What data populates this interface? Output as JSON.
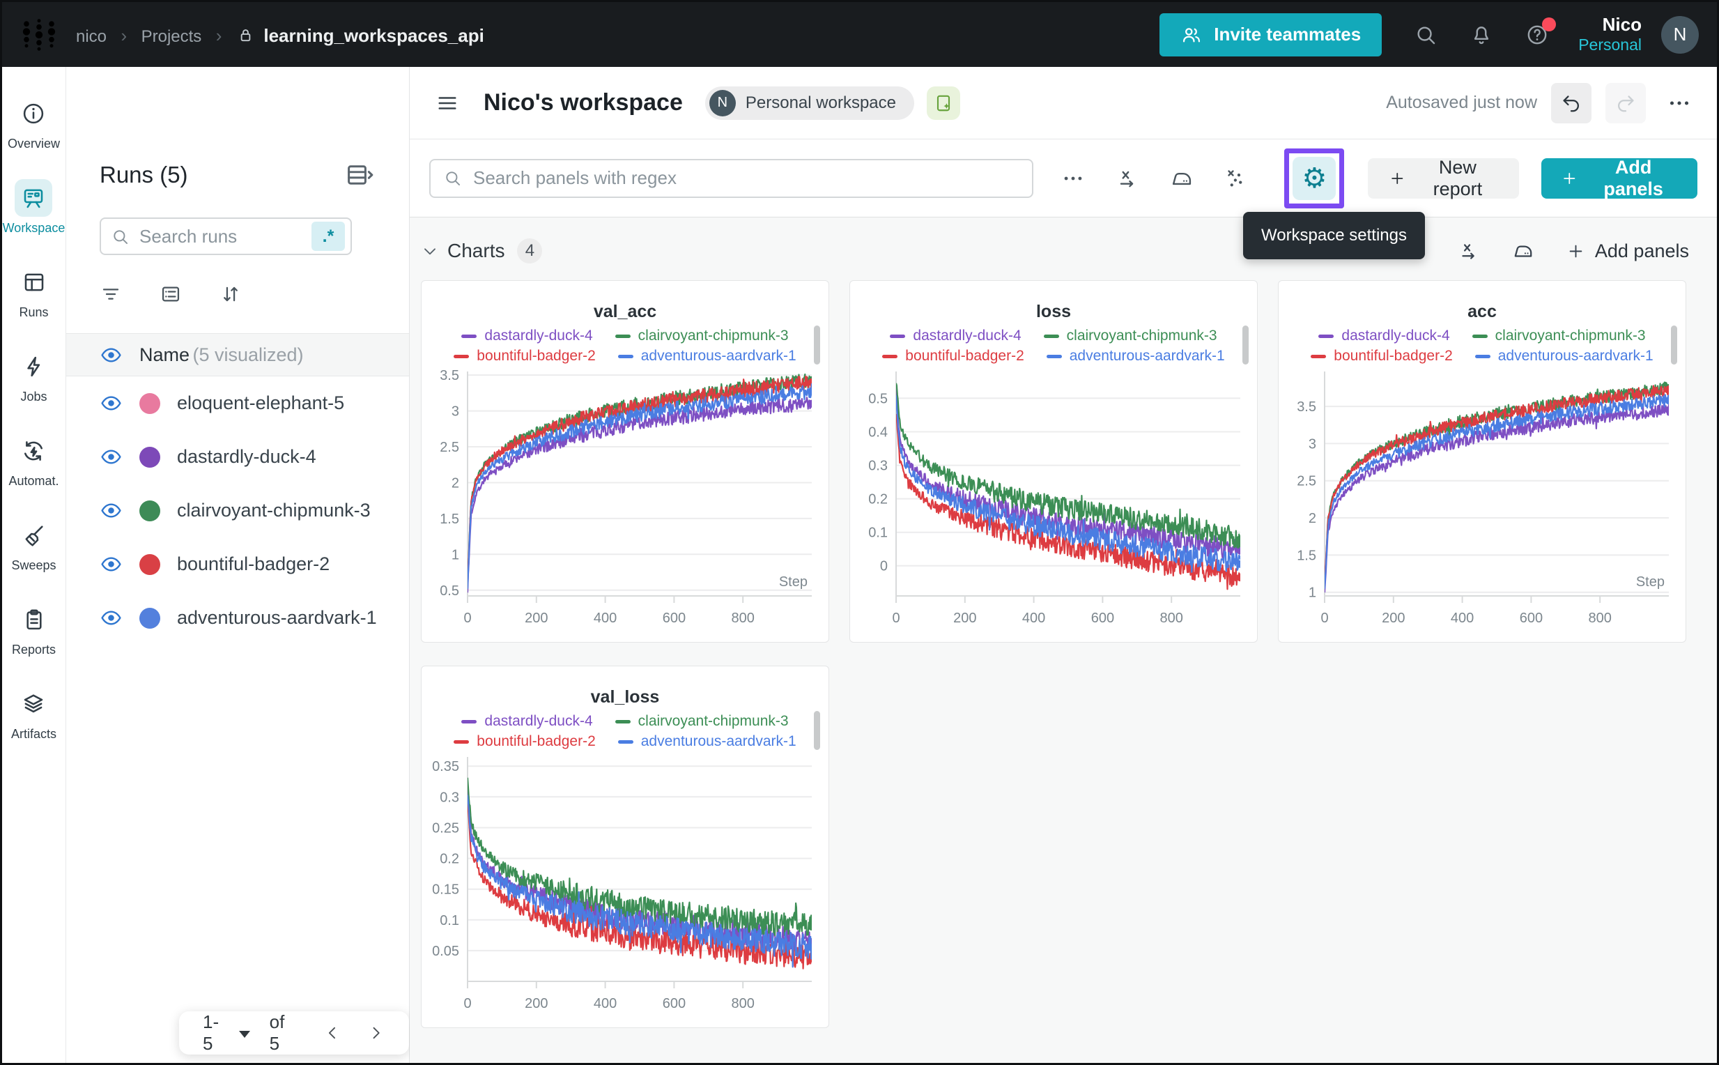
{
  "topbar": {
    "breadcrumb": {
      "items": [
        "nico",
        "Projects"
      ],
      "current": "learning_workspaces_api",
      "separator": "›"
    },
    "invite_label": "Invite teammates",
    "user_name": "Nico",
    "user_scope": "Personal",
    "avatar_initial": "N"
  },
  "rail": {
    "items": [
      {
        "label": "Overview",
        "icon": "overview-info-icon",
        "key": "info",
        "active": false
      },
      {
        "label": "Workspace",
        "icon": "workspace-board-icon",
        "key": "board",
        "active": true
      },
      {
        "label": "Runs",
        "icon": "runs-table-icon",
        "key": "table",
        "active": false
      },
      {
        "label": "Jobs",
        "icon": "jobs-bolt-icon",
        "key": "bolt",
        "active": false
      },
      {
        "label": "Automat.",
        "icon": "automations-icon",
        "key": "auto",
        "active": false
      },
      {
        "label": "Sweeps",
        "icon": "sweeps-broom-icon",
        "key": "broom",
        "active": false
      },
      {
        "label": "Reports",
        "icon": "reports-clipboard-icon",
        "key": "clipboard",
        "active": false
      },
      {
        "label": "Artifacts",
        "icon": "artifacts-layers-icon",
        "key": "layers",
        "active": false
      }
    ]
  },
  "runs_panel": {
    "title": "Runs (5)",
    "search_placeholder": "Search runs",
    "regex_badge": ".*",
    "header_name": "Name",
    "header_suffix": "(5 visualized)",
    "runs": [
      {
        "name": "eloquent-elephant-5",
        "color": "#e87a9f"
      },
      {
        "name": "dastardly-duck-4",
        "color": "#7d49b8"
      },
      {
        "name": "clairvoyant-chipmunk-3",
        "color": "#3d8b57"
      },
      {
        "name": "bountiful-badger-2",
        "color": "#d94045"
      },
      {
        "name": "adventurous-aardvark-1",
        "color": "#5380dd"
      }
    ],
    "pagination": {
      "range": "1-5",
      "total": "of 5"
    }
  },
  "workspace_header": {
    "title": "Nico's workspace",
    "badge_initial": "N",
    "badge_label": "Personal workspace",
    "autosave": "Autosaved just now"
  },
  "toolbar": {
    "search_placeholder": "Search panels with regex",
    "new_report": "New report",
    "add_panels": "Add panels",
    "tooltip": "Workspace settings"
  },
  "charts_section": {
    "title": "Charts",
    "count": "4",
    "add_panels": "Add panels"
  },
  "glyphs": {
    "gear": "⚙",
    "caret_down": ""
  },
  "colors": {
    "accent_teal": "#13a9ba",
    "highlight_purple": "#7c4bf2",
    "series_purple": "#7e4fc3",
    "series_green": "#3c8e55",
    "series_red": "#dd3c41",
    "series_blue": "#4a7de2"
  },
  "chart_data": [
    {
      "type": "line",
      "title": "val_acc",
      "xlabel": "Step",
      "x_range": [
        0,
        1000
      ],
      "x_ticks": [
        0,
        200,
        400,
        600,
        800
      ],
      "y_range": [
        0.42,
        3.55
      ],
      "y_ticks": [
        0.5,
        1,
        1.5,
        2,
        2.5,
        3,
        3.5
      ],
      "x_key": [
        0,
        10,
        25,
        50,
        100,
        150,
        200,
        300,
        400,
        500,
        600,
        700,
        800,
        900,
        1000
      ],
      "noise": 0.1,
      "series": [
        {
          "name": "dastardly-duck-4",
          "color": "#7e4fc3",
          "y": [
            0.5,
            1.55,
            1.85,
            2.05,
            2.23,
            2.36,
            2.46,
            2.62,
            2.74,
            2.84,
            2.9,
            2.97,
            3.02,
            3.07,
            3.1
          ]
        },
        {
          "name": "clairvoyant-chipmunk-3",
          "color": "#3c8e55",
          "y": [
            0.6,
            1.75,
            2.05,
            2.26,
            2.46,
            2.6,
            2.7,
            2.87,
            3.0,
            3.1,
            3.17,
            3.25,
            3.32,
            3.38,
            3.43
          ]
        },
        {
          "name": "bountiful-badger-2",
          "color": "#dd3c41",
          "y": [
            0.6,
            1.73,
            2.03,
            2.24,
            2.44,
            2.57,
            2.67,
            2.85,
            2.97,
            3.07,
            3.15,
            3.22,
            3.29,
            3.35,
            3.4
          ]
        },
        {
          "name": "adventurous-aardvark-1",
          "color": "#4a7de2",
          "y": [
            0.55,
            1.65,
            1.95,
            2.15,
            2.33,
            2.46,
            2.56,
            2.72,
            2.85,
            2.95,
            3.03,
            3.1,
            3.16,
            3.22,
            3.27
          ]
        }
      ]
    },
    {
      "type": "line",
      "title": "loss",
      "xlabel": "",
      "x_range": [
        0,
        1000
      ],
      "x_ticks": [
        0,
        200,
        400,
        600,
        800
      ],
      "y_range": [
        -0.09,
        0.58
      ],
      "y_ticks": [
        0,
        0.1,
        0.2,
        0.3,
        0.4,
        0.5
      ],
      "x_key": [
        0,
        10,
        25,
        50,
        100,
        150,
        200,
        300,
        400,
        500,
        600,
        700,
        800,
        900,
        1000
      ],
      "noise": 0.032,
      "series": [
        {
          "name": "dastardly-duck-4",
          "color": "#7e4fc3",
          "y": [
            0.52,
            0.38,
            0.33,
            0.29,
            0.245,
            0.22,
            0.2,
            0.17,
            0.145,
            0.125,
            0.11,
            0.095,
            0.08,
            0.062,
            0.045
          ]
        },
        {
          "name": "clairvoyant-chipmunk-3",
          "color": "#3c8e55",
          "y": [
            0.55,
            0.43,
            0.385,
            0.345,
            0.295,
            0.27,
            0.25,
            0.215,
            0.19,
            0.17,
            0.155,
            0.14,
            0.125,
            0.105,
            0.08
          ]
        },
        {
          "name": "bountiful-badger-2",
          "color": "#dd3c41",
          "y": [
            0.46,
            0.32,
            0.27,
            0.23,
            0.185,
            0.16,
            0.14,
            0.11,
            0.085,
            0.06,
            0.04,
            0.02,
            0.0,
            -0.015,
            -0.035
          ]
        },
        {
          "name": "adventurous-aardvark-1",
          "color": "#4a7de2",
          "y": [
            0.5,
            0.36,
            0.31,
            0.27,
            0.225,
            0.2,
            0.18,
            0.148,
            0.12,
            0.098,
            0.078,
            0.058,
            0.04,
            0.025,
            0.005
          ]
        }
      ]
    },
    {
      "type": "line",
      "title": "acc",
      "xlabel": "Step",
      "x_range": [
        0,
        1000
      ],
      "x_ticks": [
        0,
        200,
        400,
        600,
        800
      ],
      "y_range": [
        0.95,
        3.97
      ],
      "y_ticks": [
        1,
        1.5,
        2,
        2.5,
        3,
        3.5
      ],
      "x_key": [
        0,
        10,
        25,
        50,
        100,
        150,
        200,
        300,
        400,
        500,
        600,
        700,
        800,
        900,
        1000
      ],
      "noise": 0.085,
      "series": [
        {
          "name": "dastardly-duck-4",
          "color": "#7e4fc3",
          "y": [
            1.0,
            1.82,
            2.1,
            2.3,
            2.52,
            2.66,
            2.76,
            2.92,
            3.04,
            3.14,
            3.22,
            3.3,
            3.36,
            3.41,
            3.45
          ]
        },
        {
          "name": "clairvoyant-chipmunk-3",
          "color": "#3c8e55",
          "y": [
            1.1,
            2.0,
            2.3,
            2.52,
            2.75,
            2.9,
            3.0,
            3.17,
            3.3,
            3.4,
            3.48,
            3.56,
            3.62,
            3.68,
            3.75
          ]
        },
        {
          "name": "bountiful-badger-2",
          "color": "#dd3c41",
          "y": [
            1.1,
            1.98,
            2.28,
            2.5,
            2.73,
            2.88,
            2.98,
            3.15,
            3.28,
            3.38,
            3.46,
            3.54,
            3.6,
            3.66,
            3.73
          ]
        },
        {
          "name": "adventurous-aardvark-1",
          "color": "#4a7de2",
          "y": [
            1.05,
            1.9,
            2.2,
            2.4,
            2.62,
            2.76,
            2.86,
            3.02,
            3.15,
            3.25,
            3.33,
            3.41,
            3.47,
            3.53,
            3.58
          ]
        }
      ]
    },
    {
      "type": "line",
      "title": "val_loss",
      "xlabel": "",
      "x_range": [
        0,
        1000
      ],
      "x_ticks": [
        0,
        200,
        400,
        600,
        800
      ],
      "y_range": [
        0.0,
        0.365
      ],
      "y_ticks": [
        0.05,
        0.1,
        0.15,
        0.2,
        0.25,
        0.3,
        0.35
      ],
      "x_key": [
        0,
        10,
        25,
        50,
        100,
        150,
        200,
        300,
        400,
        500,
        600,
        700,
        800,
        900,
        1000
      ],
      "noise": 0.02,
      "series": [
        {
          "name": "dastardly-duck-4",
          "color": "#7e4fc3",
          "y": [
            0.32,
            0.24,
            0.215,
            0.19,
            0.165,
            0.15,
            0.14,
            0.122,
            0.11,
            0.1,
            0.092,
            0.085,
            0.078,
            0.071,
            0.064
          ]
        },
        {
          "name": "clairvoyant-chipmunk-3",
          "color": "#3c8e55",
          "y": [
            0.33,
            0.26,
            0.235,
            0.21,
            0.185,
            0.17,
            0.16,
            0.142,
            0.13,
            0.12,
            0.112,
            0.105,
            0.099,
            0.094,
            0.089
          ]
        },
        {
          "name": "bountiful-badger-2",
          "color": "#dd3c41",
          "y": [
            0.3,
            0.215,
            0.19,
            0.163,
            0.138,
            0.123,
            0.11,
            0.093,
            0.08,
            0.07,
            0.062,
            0.055,
            0.049,
            0.043,
            0.037
          ]
        },
        {
          "name": "adventurous-aardvark-1",
          "color": "#4a7de2",
          "y": [
            0.31,
            0.235,
            0.21,
            0.185,
            0.16,
            0.145,
            0.133,
            0.115,
            0.102,
            0.092,
            0.084,
            0.076,
            0.069,
            0.062,
            0.055
          ]
        }
      ]
    }
  ]
}
